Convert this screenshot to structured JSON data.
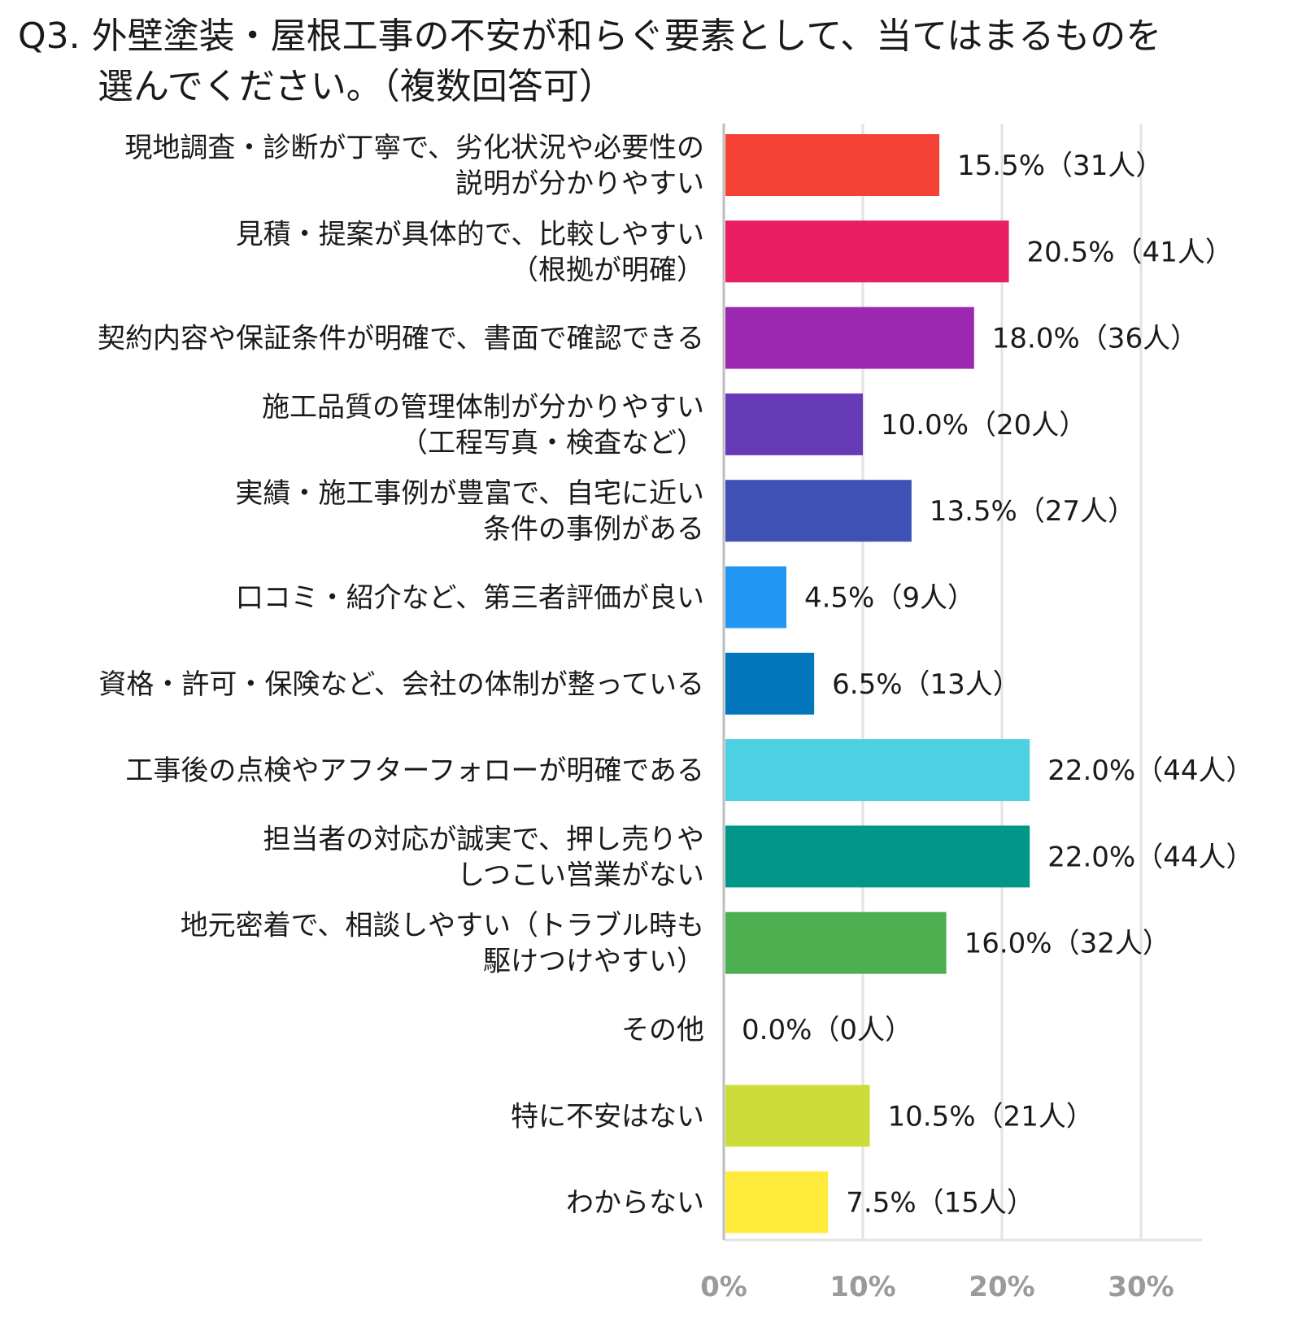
{
  "title": {
    "line1": "Q3. 外壁塗装・屋根工事の不安が和らぐ要素として、当てはまるものを",
    "line2": "選んでください。（複数回答可）"
  },
  "chart_data": {
    "type": "bar",
    "orientation": "horizontal",
    "title": "Q3. 外壁塗装・屋根工事の不安が和らぐ要素として、当てはまるものを選んでください。（複数回答可）",
    "xlabel": "",
    "ylabel": "",
    "xlim": [
      0,
      35
    ],
    "x_ticks": [
      0,
      10,
      20,
      30
    ],
    "x_tick_labels": [
      "0%",
      "10%",
      "20%",
      "30%"
    ],
    "grid": true,
    "categories": [
      [
        "現地調査・診断が丁寧で、劣化状況や必要性の",
        "説明が分かりやすい"
      ],
      [
        "見積・提案が具体的で、比較しやすい",
        "（根拠が明確）"
      ],
      [
        "契約内容や保証条件が明確で、書面で確認できる"
      ],
      [
        "施工品質の管理体制が分かりやすい",
        "（工程写真・検査など）"
      ],
      [
        "実績・施工事例が豊富で、自宅に近い",
        "条件の事例がある"
      ],
      [
        "口コミ・紹介など、第三者評価が良い"
      ],
      [
        "資格・許可・保険など、会社の体制が整っている"
      ],
      [
        "工事後の点検やアフターフォローが明確である"
      ],
      [
        "担当者の対応が誠実で、押し売りや",
        "しつこい営業がない"
      ],
      [
        "地元密着で、相談しやすい（トラブル時も",
        "駆けつけやすい）"
      ],
      [
        "その他"
      ],
      [
        "特に不安はない"
      ],
      [
        "わからない"
      ]
    ],
    "values": [
      15.5,
      20.5,
      18.0,
      10.0,
      13.5,
      4.5,
      6.5,
      22.0,
      22.0,
      16.0,
      0.0,
      10.5,
      7.5
    ],
    "value_labels": [
      "15.5%（31人）",
      "20.5%（41人）",
      "18.0%（36人）",
      "10.0%（20人）",
      "13.5%（27人）",
      "4.5%（9人）",
      "6.5%（13人）",
      "22.0%（44人）",
      "22.0%（44人）",
      "16.0%（32人）",
      "0.0%（0人）",
      "10.5%（21人）",
      "7.5%（15人）"
    ],
    "colors": [
      "#f44336",
      "#e91e63",
      "#9c27b0",
      "#673ab7",
      "#3f51b5",
      "#2196f3",
      "#0277bd",
      "#4dd0e1",
      "#009688",
      "#4caf50",
      "#9e9e9e",
      "#cddc39",
      "#ffeb3b"
    ]
  }
}
